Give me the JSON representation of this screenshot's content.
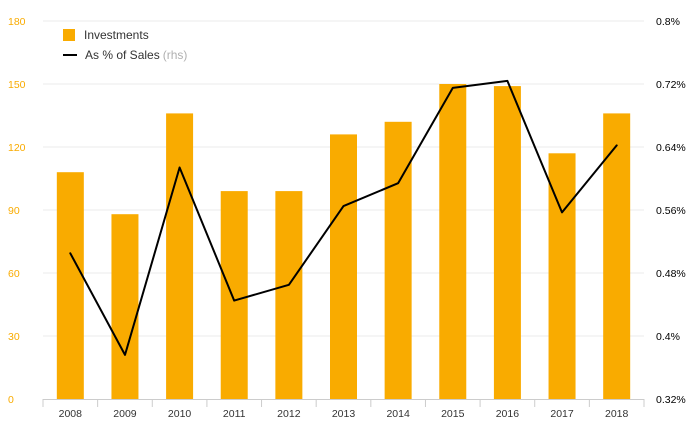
{
  "chart_data": {
    "type": "bar",
    "categories": [
      "2008",
      "2009",
      "2010",
      "2011",
      "2012",
      "2013",
      "2014",
      "2015",
      "2016",
      "2017",
      "2018"
    ],
    "series": [
      {
        "name": "Investments",
        "type": "bar",
        "axis": "left",
        "color": "#f9ab00",
        "values": [
          108,
          88,
          136,
          99,
          99,
          126,
          132,
          150,
          149,
          117,
          136
        ]
      },
      {
        "name": "As % of Sales",
        "name_suffix": "(rhs)",
        "type": "line",
        "axis": "right",
        "color": "#000000",
        "values": [
          0.505,
          0.376,
          0.614,
          0.445,
          0.465,
          0.565,
          0.594,
          0.715,
          0.724,
          0.557,
          0.642
        ]
      }
    ],
    "y_left": {
      "ylim": [
        0,
        180
      ],
      "ticks": [
        0,
        30,
        60,
        90,
        120,
        150,
        180
      ],
      "tick_labels": [
        "0",
        "30",
        "60",
        "90",
        "120",
        "150",
        "180"
      ],
      "color": "#f9ab00"
    },
    "y_right": {
      "ylim": [
        0.32,
        0.8
      ],
      "ticks": [
        0.32,
        0.4,
        0.48,
        0.56,
        0.64,
        0.72,
        0.8
      ],
      "tick_labels": [
        "0.32%",
        "0.4%",
        "0.48%",
        "0.56%",
        "0.64%",
        "0.72%",
        "0.8%"
      ],
      "color": "#000000"
    },
    "grid": true,
    "legend_position": "top-left",
    "legend": {
      "investments_label": "Investments",
      "sales_label": "As % of Sales",
      "sales_suffix": "(rhs)"
    }
  }
}
